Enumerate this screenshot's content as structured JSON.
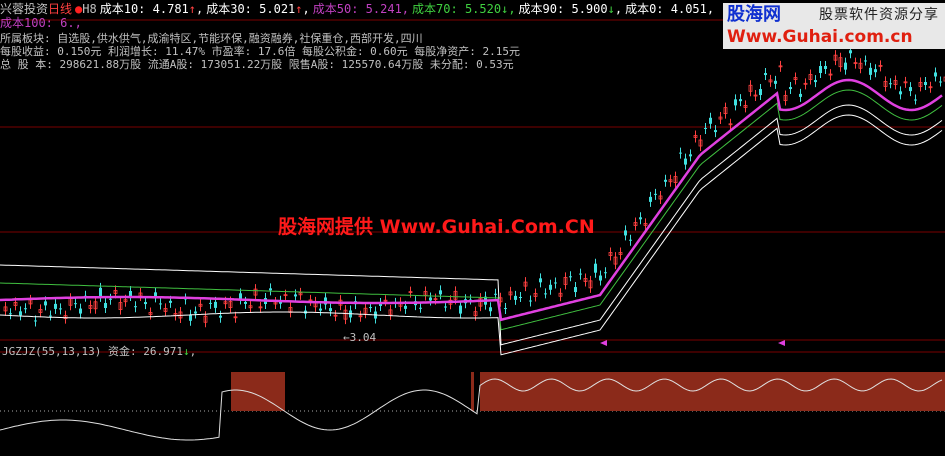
{
  "header": {
    "stock_name": "兴蓉投资",
    "period": "日线",
    "code": "H8",
    "ma": [
      {
        "label": "成本10:",
        "value": "4.781",
        "arrow": "↑",
        "color": "#ffffff",
        "arrow_color": "#ff4040"
      },
      {
        "label": "成本30:",
        "value": "5.021",
        "arrow": "↑",
        "color": "#ffffff",
        "arrow_color": "#ff4040"
      },
      {
        "label": "成本50:",
        "value": "5.241",
        "arrow": "",
        "color": "#c040c0",
        "arrow_color": ""
      },
      {
        "label": "成本70:",
        "value": "5.520",
        "arrow": "↓",
        "color": "#40d040",
        "arrow_color": "#40d040"
      },
      {
        "label": "成本90:",
        "value": "5.900",
        "arrow": "↓",
        "color": "#ffffff",
        "arrow_color": "#40d040"
      },
      {
        "label": "成本0:",
        "value": "4.051",
        "arrow": "",
        "color": "#ffffff",
        "arrow_color": ""
      },
      {
        "label": "成本100:",
        "value": "6.",
        "arrow": "",
        "color": "#c040c0",
        "arrow_color": ""
      }
    ]
  },
  "info": {
    "line1": "所属板块:  自选股,供水供气,成渝特区,节能环保,融资融券,社保重仓,西部开发,四川",
    "line2": "每股收益:  0.150元    利润增长: 11.47%    市盈率: 17.6倍   每股公积金: 0.60元 每股净资产: 2.15元",
    "line3": "总 股 本:  298621.88万股  流通A股: 173051.22万股  限售A股: 125570.64万股 未分配: 0.53元"
  },
  "watermark": "股海网提供 Www.Guhai.Com.CN",
  "logo": {
    "name": "股海网",
    "tagline": "股票软件资源分享",
    "url": "Www.Guhai.com.cn"
  },
  "low_marker": "←3.04",
  "indicator": {
    "name": "JGZJZ(55,13,13)",
    "label": "资金:",
    "value": "26.971",
    "arrow": "↓"
  },
  "colors": {
    "background": "#000000",
    "grid": "#800000",
    "up": "#ff4040",
    "down": "#40e0e0",
    "ma_main": "#e040e0",
    "fund_fill": "#8b2a1a"
  }
}
